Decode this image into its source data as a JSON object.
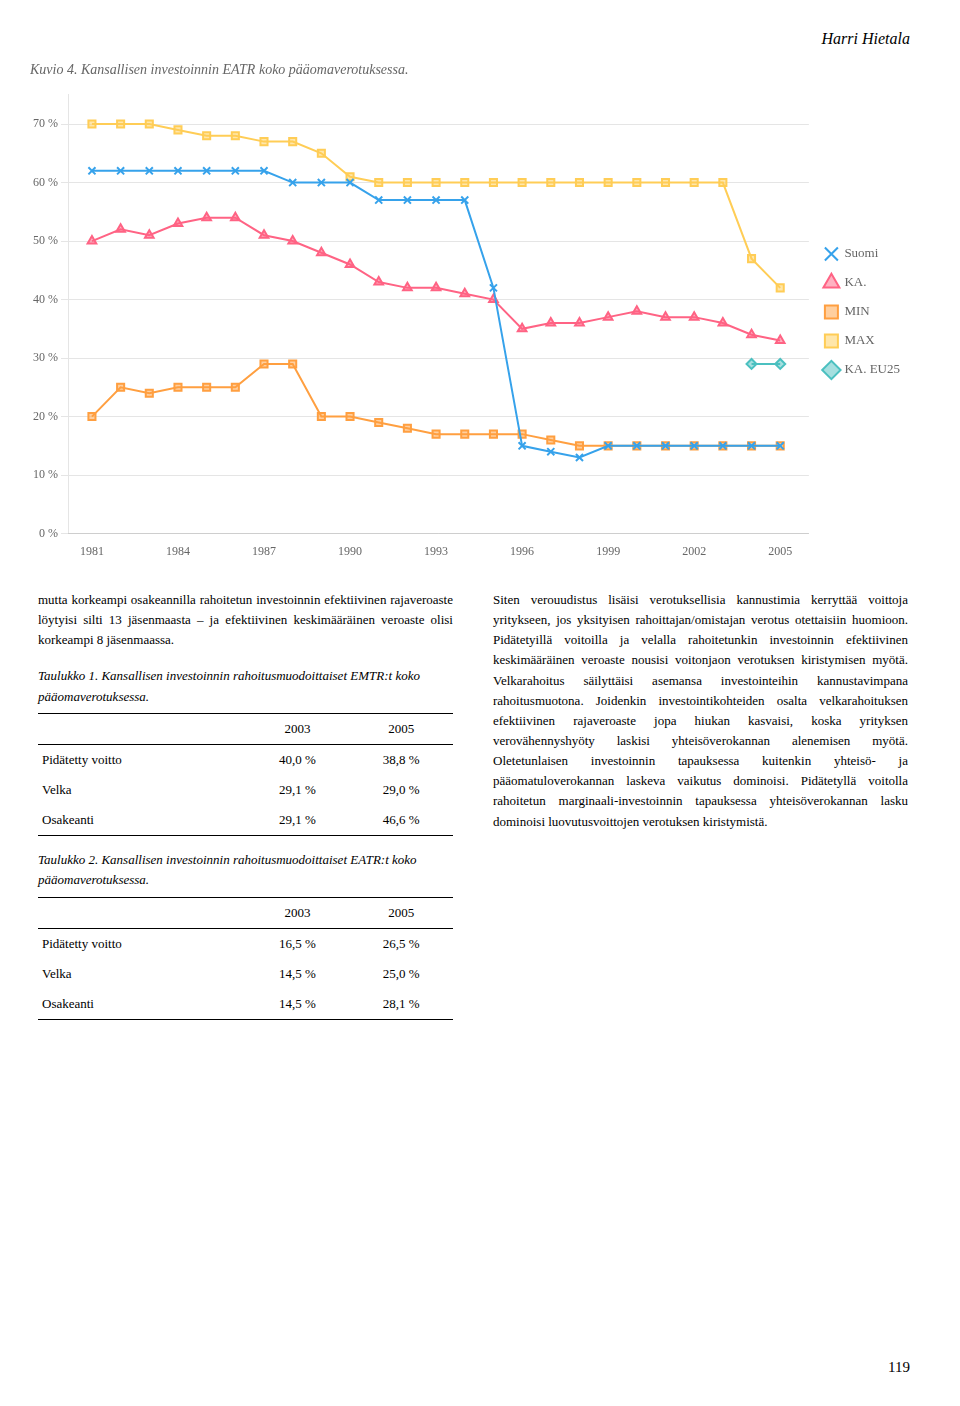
{
  "header": "Harri Hietala",
  "chart_data": {
    "type": "line",
    "title": "Kuvio 4. Kansallisen investoinnin EATR koko pääomaverotuksessa.",
    "x": [
      1981,
      1982,
      1983,
      1984,
      1985,
      1986,
      1987,
      1988,
      1989,
      1990,
      1991,
      1992,
      1993,
      1994,
      1995,
      1996,
      1997,
      1998,
      1999,
      2000,
      2001,
      2002,
      2003,
      2004,
      2005
    ],
    "xlim": [
      1980.2,
      2006
    ],
    "xticks": [
      1981,
      1984,
      1987,
      1990,
      1993,
      1996,
      1999,
      2002,
      2005
    ],
    "ylim": [
      0,
      75
    ],
    "yticks": [
      {
        "value": 0,
        "label": "0 %"
      },
      {
        "value": 10,
        "label": "10 %"
      },
      {
        "value": 20,
        "label": "20 %"
      },
      {
        "value": 30,
        "label": "30 %"
      },
      {
        "value": 40,
        "label": "40 %"
      },
      {
        "value": 50,
        "label": "50 %"
      },
      {
        "value": 60,
        "label": "60 %"
      },
      {
        "value": 70,
        "label": "70 %"
      }
    ],
    "grid": "y",
    "legend": "right",
    "series": [
      {
        "name": "Suomi",
        "marker": "x",
        "values": [
          62,
          62,
          62,
          62,
          62,
          62,
          62,
          60,
          60,
          60,
          57,
          57,
          57,
          57,
          42,
          15,
          14,
          13,
          15,
          15,
          15,
          15,
          15,
          15,
          15
        ]
      },
      {
        "name": "KA.",
        "marker": "triangle",
        "values": [
          50,
          52,
          51,
          53,
          54,
          54,
          51,
          50,
          48,
          46,
          43,
          42,
          42,
          41,
          40,
          35,
          36,
          36,
          37,
          38,
          37,
          37,
          36,
          34,
          33
        ]
      },
      {
        "name": "MIN",
        "marker": "square",
        "values": [
          20,
          25,
          24,
          25,
          25,
          25,
          29,
          29,
          20,
          20,
          19,
          18,
          17,
          17,
          17,
          17,
          16,
          15,
          15,
          15,
          15,
          15,
          15,
          15,
          15
        ]
      },
      {
        "name": "MAX",
        "marker": "square",
        "values": [
          70,
          70,
          70,
          69,
          68,
          68,
          67,
          67,
          65,
          61,
          60,
          60,
          60,
          60,
          60,
          60,
          60,
          60,
          60,
          60,
          60,
          60,
          60,
          47,
          42
        ]
      },
      {
        "name": "KA. EU25",
        "marker": "diamond",
        "values": [
          null,
          null,
          null,
          null,
          null,
          null,
          null,
          null,
          null,
          null,
          null,
          null,
          null,
          null,
          null,
          null,
          null,
          null,
          null,
          null,
          null,
          null,
          null,
          29,
          29
        ]
      }
    ]
  },
  "left_text": "mutta korkeampi osakeannilla rahoitetun investoinnin efektiivinen rajaveroaste löytyisi silti 13 jäsenmaasta – ja efektiivinen keskimääräinen veroaste olisi korkeampi 8 jäsenmaassa.",
  "right_text": "Siten verouudistus lisäisi verotuksellisia kannustimia kerryttää voittoja yritykseen, jos yksityisen rahoittajan/omistajan verotus otettaisiin huomioon. Pidätetyillä voitoilla ja velalla rahoitetunkin investoinnin efektiivinen keskimääräinen veroaste nousisi voitonjaon verotuksen kiristymisen myötä. Velkarahoitus säilyttäisi asemansa investointeihin kannustavimpana rahoitusmuotona. Joidenkin investointikohteiden osalta velkarahoituksen efektiivinen rajaveroaste jopa hiukan kasvaisi, koska yrityksen verovähennyshyöty laskisi yhteisöverokannan alenemisen myötä. Oletetunlaisen investoinnin tapauksessa kuitenkin yhteisö- ja pääomatuloverokannan laskeva vaikutus dominoisi. Pidätetyllä voitolla rahoitetun marginaali-investoinnin tapauksessa yhteisöverokannan lasku dominoisi luovutusvoittojen verotuksen kiristymistä.",
  "tables": [
    {
      "caption": "Taulukko 1. Kansallisen investoinnin rahoitusmuodoittaiset EMTR:t koko pääomaverotuksessa.",
      "columns": [
        "2003",
        "2005"
      ],
      "rows": [
        {
          "label": "Pidätetty voitto",
          "cells": [
            "40,0 %",
            "38,8 %"
          ]
        },
        {
          "label": "Velka",
          "cells": [
            "29,1 %",
            "29,0 %"
          ]
        },
        {
          "label": "Osakeanti",
          "cells": [
            "29,1 %",
            "46,6 %"
          ]
        }
      ]
    },
    {
      "caption": "Taulukko 2. Kansallisen investoinnin rahoitusmuodoittaiset EATR:t koko pääomaverotuksessa.",
      "columns": [
        "2003",
        "2005"
      ],
      "rows": [
        {
          "label": "Pidätetty voitto",
          "cells": [
            "16,5 %",
            "26,5 %"
          ]
        },
        {
          "label": "Velka",
          "cells": [
            "14,5 %",
            "25,0 %"
          ]
        },
        {
          "label": "Osakeanti",
          "cells": [
            "14,5 %",
            "28,1 %"
          ]
        }
      ]
    }
  ],
  "page_number": "119"
}
